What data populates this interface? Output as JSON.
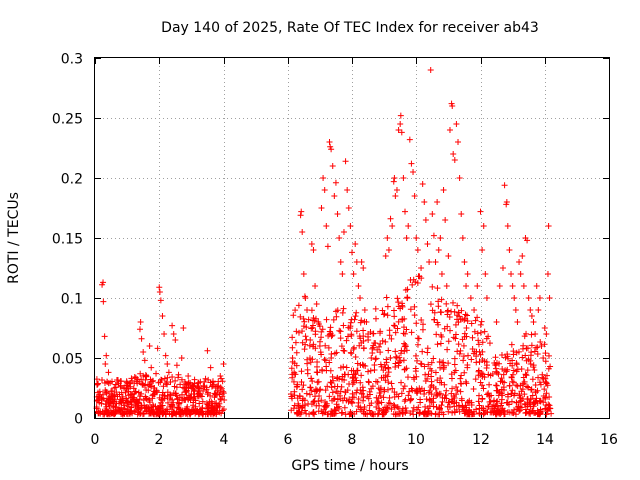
{
  "chart_data": {
    "type": "scatter",
    "title": "Day 140 of 2025, Rate Of TEC Index for receiver ab43",
    "xlabel": "GPS time / hours",
    "ylabel": "ROTI / TECUs",
    "xlim": [
      0,
      16
    ],
    "ylim": [
      0,
      0.3
    ],
    "xticks": [
      "0",
      "2",
      "4",
      "6",
      "8",
      "10",
      "12",
      "14",
      "16"
    ],
    "yticks": [
      "0",
      "0.05",
      "0.1",
      "0.15",
      "0.2",
      "0.25",
      "0.3"
    ],
    "grid": true,
    "marker": "+",
    "color": "#ff0000",
    "series": [
      {
        "name": "ROTI",
        "points": [
          [
            0.05,
            0.008
          ],
          [
            0.1,
            0.015
          ],
          [
            0.15,
            0.022
          ],
          [
            0.2,
            0.012
          ],
          [
            0.22,
            0.111
          ],
          [
            0.25,
            0.113
          ],
          [
            0.26,
            0.097
          ],
          [
            0.3,
            0.068
          ],
          [
            0.32,
            0.045
          ],
          [
            0.35,
            0.052
          ],
          [
            0.38,
            0.03
          ],
          [
            0.42,
            0.038
          ],
          [
            0.45,
            0.01
          ],
          [
            0.5,
            0.02
          ],
          [
            0.55,
            0.014
          ],
          [
            0.6,
            0.025
          ],
          [
            0.65,
            0.009
          ],
          [
            0.7,
            0.018
          ],
          [
            0.75,
            0.012
          ],
          [
            0.8,
            0.027
          ],
          [
            0.85,
            0.016
          ],
          [
            0.9,
            0.008
          ],
          [
            0.95,
            0.021
          ],
          [
            1.0,
            0.013
          ],
          [
            1.05,
            0.019
          ],
          [
            1.1,
            0.026
          ],
          [
            1.15,
            0.011
          ],
          [
            1.2,
            0.017
          ],
          [
            1.25,
            0.022
          ],
          [
            1.3,
            0.015
          ],
          [
            1.35,
            0.009
          ],
          [
            1.4,
            0.074
          ],
          [
            1.42,
            0.08
          ],
          [
            1.45,
            0.066
          ],
          [
            1.5,
            0.055
          ],
          [
            1.55,
            0.048
          ],
          [
            1.6,
            0.035
          ],
          [
            1.65,
            0.028
          ],
          [
            1.7,
            0.06
          ],
          [
            1.75,
            0.042
          ],
          [
            1.8,
            0.031
          ],
          [
            1.85,
            0.025
          ],
          [
            1.9,
            0.037
          ],
          [
            1.95,
            0.058
          ],
          [
            2.0,
            0.109
          ],
          [
            2.02,
            0.105
          ],
          [
            2.05,
            0.098
          ],
          [
            2.1,
            0.085
          ],
          [
            2.15,
            0.07
          ],
          [
            2.2,
            0.052
          ],
          [
            2.25,
            0.045
          ],
          [
            2.3,
            0.038
          ],
          [
            2.35,
            0.03
          ],
          [
            2.4,
            0.077
          ],
          [
            2.45,
            0.07
          ],
          [
            2.5,
            0.065
          ],
          [
            2.55,
            0.044
          ],
          [
            2.6,
            0.036
          ],
          [
            2.65,
            0.028
          ],
          [
            2.7,
            0.05
          ],
          [
            2.75,
            0.075
          ],
          [
            2.8,
            0.03
          ],
          [
            2.85,
            0.022
          ],
          [
            2.9,
            0.035
          ],
          [
            3.0,
            0.02
          ],
          [
            3.1,
            0.032
          ],
          [
            3.2,
            0.018
          ],
          [
            3.3,
            0.025
          ],
          [
            3.4,
            0.03
          ],
          [
            3.5,
            0.056
          ],
          [
            3.6,
            0.042
          ],
          [
            3.7,
            0.028
          ],
          [
            3.8,
            0.02
          ],
          [
            3.9,
            0.035
          ],
          [
            4.0,
            0.045
          ],
          [
            4.02,
            0.015
          ],
          [
            0.4,
            0.005
          ],
          [
            0.9,
            0.004
          ],
          [
            1.6,
            0.006
          ],
          [
            2.2,
            0.005
          ],
          [
            2.8,
            0.006
          ],
          [
            3.3,
            0.004
          ],
          [
            3.8,
            0.005
          ],
          [
            6.1,
            0.02
          ],
          [
            6.15,
            0.05
          ],
          [
            6.2,
            0.038
          ],
          [
            6.3,
            0.028
          ],
          [
            6.35,
            0.071
          ],
          [
            6.4,
            0.169
          ],
          [
            6.42,
            0.172
          ],
          [
            6.45,
            0.155
          ],
          [
            6.5,
            0.12
          ],
          [
            6.55,
            0.1
          ],
          [
            6.6,
            0.09
          ],
          [
            6.65,
            0.082
          ],
          [
            6.7,
            0.065
          ],
          [
            6.75,
            0.145
          ],
          [
            6.8,
            0.14
          ],
          [
            6.85,
            0.11
          ],
          [
            6.9,
            0.095
          ],
          [
            6.95,
            0.08
          ],
          [
            7.0,
            0.06
          ],
          [
            7.05,
            0.175
          ],
          [
            7.1,
            0.2
          ],
          [
            7.15,
            0.19
          ],
          [
            7.2,
            0.16
          ],
          [
            7.25,
            0.143
          ],
          [
            7.3,
            0.23
          ],
          [
            7.32,
            0.226
          ],
          [
            7.35,
            0.224
          ],
          [
            7.4,
            0.21
          ],
          [
            7.45,
            0.185
          ],
          [
            7.5,
            0.196
          ],
          [
            7.55,
            0.17
          ],
          [
            7.6,
            0.15
          ],
          [
            7.65,
            0.13
          ],
          [
            7.7,
            0.12
          ],
          [
            7.75,
            0.155
          ],
          [
            7.8,
            0.214
          ],
          [
            7.85,
            0.19
          ],
          [
            7.9,
            0.175
          ],
          [
            7.95,
            0.16
          ],
          [
            8.0,
            0.138
          ],
          [
            8.05,
            0.12
          ],
          [
            8.1,
            0.145
          ],
          [
            8.15,
            0.13
          ],
          [
            8.2,
            0.11
          ],
          [
            8.25,
            0.1
          ],
          [
            8.3,
            0.13
          ],
          [
            8.35,
            0.125
          ],
          [
            8.4,
            0.09
          ],
          [
            8.45,
            0.08
          ],
          [
            8.5,
            0.07
          ],
          [
            8.6,
            0.05
          ],
          [
            8.7,
            0.04
          ],
          [
            8.8,
            0.03
          ],
          [
            8.9,
            0.025
          ],
          [
            9.0,
            0.022
          ],
          [
            9.05,
            0.135
          ],
          [
            9.1,
            0.15
          ],
          [
            9.15,
            0.14
          ],
          [
            9.2,
            0.166
          ],
          [
            9.25,
            0.16
          ],
          [
            9.3,
            0.197
          ],
          [
            9.32,
            0.2
          ],
          [
            9.35,
            0.185
          ],
          [
            9.4,
            0.19
          ],
          [
            9.45,
            0.24
          ],
          [
            9.5,
            0.245
          ],
          [
            9.52,
            0.252
          ],
          [
            9.55,
            0.238
          ],
          [
            9.6,
            0.2
          ],
          [
            9.65,
            0.172
          ],
          [
            9.7,
            0.15
          ],
          [
            9.75,
            0.16
          ],
          [
            9.8,
            0.232
          ],
          [
            9.85,
            0.212
          ],
          [
            9.9,
            0.205
          ],
          [
            9.95,
            0.185
          ],
          [
            10.0,
            0.15
          ],
          [
            10.05,
            0.14
          ],
          [
            10.1,
            0.118
          ],
          [
            10.15,
            0.125
          ],
          [
            10.2,
            0.195
          ],
          [
            10.25,
            0.18
          ],
          [
            10.3,
            0.165
          ],
          [
            10.35,
            0.145
          ],
          [
            10.4,
            0.13
          ],
          [
            10.45,
            0.29
          ],
          [
            10.5,
            0.17
          ],
          [
            10.55,
            0.152
          ],
          [
            10.6,
            0.13
          ],
          [
            10.65,
            0.18
          ],
          [
            10.7,
            0.14
          ],
          [
            10.75,
            0.15
          ],
          [
            10.8,
            0.12
          ],
          [
            10.85,
            0.19
          ],
          [
            10.9,
            0.165
          ],
          [
            10.95,
            0.11
          ],
          [
            11.0,
            0.135
          ],
          [
            11.05,
            0.24
          ],
          [
            11.1,
            0.262
          ],
          [
            11.12,
            0.26
          ],
          [
            11.15,
            0.22
          ],
          [
            11.2,
            0.215
          ],
          [
            11.25,
            0.245
          ],
          [
            11.3,
            0.23
          ],
          [
            11.35,
            0.2
          ],
          [
            11.4,
            0.17
          ],
          [
            11.45,
            0.15
          ],
          [
            11.5,
            0.13
          ],
          [
            11.55,
            0.11
          ],
          [
            11.6,
            0.12
          ],
          [
            11.7,
            0.1
          ],
          [
            11.8,
            0.09
          ],
          [
            11.9,
            0.11
          ],
          [
            12.0,
            0.172
          ],
          [
            12.05,
            0.14
          ],
          [
            12.1,
            0.16
          ],
          [
            12.15,
            0.12
          ],
          [
            12.2,
            0.1
          ],
          [
            12.5,
            0.08
          ],
          [
            12.6,
            0.11
          ],
          [
            12.7,
            0.125
          ],
          [
            12.75,
            0.194
          ],
          [
            12.8,
            0.178
          ],
          [
            12.82,
            0.18
          ],
          [
            12.85,
            0.16
          ],
          [
            12.9,
            0.14
          ],
          [
            12.95,
            0.12
          ],
          [
            13.0,
            0.11
          ],
          [
            13.05,
            0.1
          ],
          [
            13.1,
            0.09
          ],
          [
            13.15,
            0.08
          ],
          [
            13.2,
            0.13
          ],
          [
            13.25,
            0.12
          ],
          [
            13.3,
            0.135
          ],
          [
            13.35,
            0.11
          ],
          [
            13.4,
            0.15
          ],
          [
            13.45,
            0.148
          ],
          [
            13.5,
            0.1
          ],
          [
            13.55,
            0.09
          ],
          [
            13.6,
            0.085
          ],
          [
            13.65,
            0.08
          ],
          [
            13.7,
            0.07
          ],
          [
            13.75,
            0.11
          ],
          [
            13.8,
            0.09
          ],
          [
            13.85,
            0.1
          ],
          [
            13.9,
            0.06
          ],
          [
            13.95,
            0.05
          ],
          [
            14.0,
            0.075
          ],
          [
            14.05,
            0.07
          ],
          [
            14.1,
            0.12
          ],
          [
            14.12,
            0.16
          ],
          [
            14.15,
            0.1
          ]
        ],
        "band_envelope": [
          [
            0.05,
            0.03
          ],
          [
            0.5,
            0.028
          ],
          [
            1.0,
            0.03
          ],
          [
            1.5,
            0.035
          ],
          [
            2.0,
            0.03
          ],
          [
            2.5,
            0.032
          ],
          [
            3.0,
            0.028
          ],
          [
            3.5,
            0.03
          ],
          [
            4.02,
            0.03
          ],
          [
            6.1,
            0.09
          ],
          [
            6.5,
            0.1
          ],
          [
            7.0,
            0.08
          ],
          [
            7.5,
            0.09
          ],
          [
            8.0,
            0.09
          ],
          [
            8.5,
            0.08
          ],
          [
            9.0,
            0.1
          ],
          [
            9.5,
            0.1
          ],
          [
            10.0,
            0.12
          ],
          [
            10.5,
            0.11
          ],
          [
            11.0,
            0.1
          ],
          [
            11.5,
            0.09
          ],
          [
            12.0,
            0.08
          ],
          [
            12.25,
            0.07
          ],
          [
            12.5,
            0.05
          ],
          [
            13.0,
            0.06
          ],
          [
            13.5,
            0.07
          ],
          [
            14.0,
            0.06
          ],
          [
            14.2,
            0.05
          ]
        ]
      }
    ]
  }
}
